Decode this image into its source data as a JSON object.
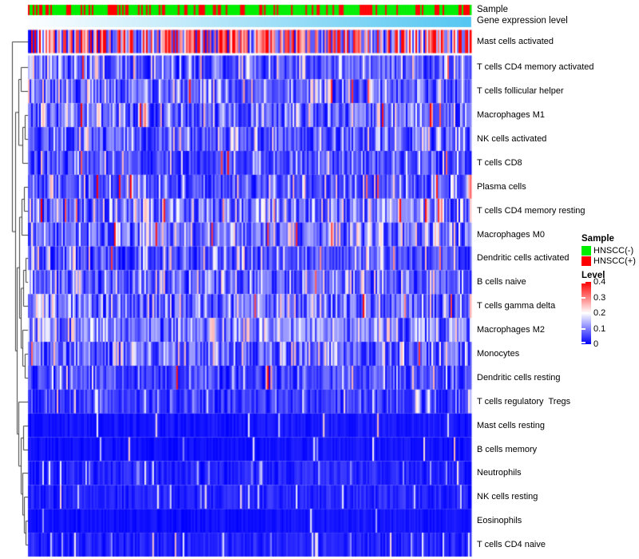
{
  "annotations": {
    "sample_label": "Sample",
    "expression_label": "Gene expression level",
    "sample_colors": {
      "negative": "#00EE00",
      "positive": "#FF0000"
    },
    "expression_gradient": {
      "from": "#FDFEFF",
      "to": "#55C7F2"
    }
  },
  "legend": {
    "sample_title": "Sample",
    "sample_items": [
      {
        "name": "hnscc-negative",
        "label": "HNSCC(-)",
        "color": "#00EE00"
      },
      {
        "name": "hnscc-positive",
        "label": "HNSCC(+)",
        "color": "#FF0000"
      }
    ],
    "level_title": "Level",
    "level_ticks": [
      "0.4",
      "0.3",
      "0.2",
      "0.1",
      "0"
    ],
    "colormap": {
      "low": "#0000FF",
      "mid": "#FFFFFF",
      "high": "#FF0000"
    }
  },
  "chart_data": {
    "type": "heatmap",
    "title": "",
    "x_axis": "samples ordered by gene expression level (no labels shown)",
    "value_range": [
      0,
      0.4
    ],
    "n_columns": 278,
    "sample_annotation": {
      "categories": [
        "HNSCC(-)",
        "HNSCC(+)"
      ],
      "colors": [
        "#00EE00",
        "#FF0000"
      ],
      "positive_fraction": 0.33
    },
    "expression_annotation": {
      "type": "continuous-gradient",
      "from": "#FDFEFF",
      "to": "#55C7F2",
      "direction": "low-left to high-right"
    },
    "rows": [
      {
        "label": "Mast cells activated",
        "p_high": 0.48,
        "p_mid": 0.22,
        "lo_max": 0.1
      },
      {
        "label": "T cells CD4 memory activated",
        "p_high": 0.01,
        "p_mid": 0.2,
        "lo_max": 0.12
      },
      {
        "label": "T cells follicular helper",
        "p_high": 0.01,
        "p_mid": 0.24,
        "lo_max": 0.12
      },
      {
        "label": "Macrophages M1",
        "p_high": 0.02,
        "p_mid": 0.24,
        "lo_max": 0.13
      },
      {
        "label": "NK cells activated",
        "p_high": 0.01,
        "p_mid": 0.2,
        "lo_max": 0.12
      },
      {
        "label": "T cells CD8",
        "p_high": 0.01,
        "p_mid": 0.13,
        "lo_max": 0.1
      },
      {
        "label": "Plasma cells",
        "p_high": 0.035,
        "p_mid": 0.14,
        "lo_max": 0.1
      },
      {
        "label": "T cells CD4 memory resting",
        "p_high": 0.05,
        "p_mid": 0.28,
        "lo_max": 0.13
      },
      {
        "label": "Macrophages M0",
        "p_high": 0.02,
        "p_mid": 0.26,
        "lo_max": 0.13
      },
      {
        "label": "Dendritic cells activated",
        "p_high": 0.015,
        "p_mid": 0.14,
        "lo_max": 0.1
      },
      {
        "label": "B cells naive",
        "p_high": 0.01,
        "p_mid": 0.22,
        "lo_max": 0.12
      },
      {
        "label": "T cells gamma delta",
        "p_high": 0.02,
        "p_mid": 0.26,
        "lo_max": 0.13
      },
      {
        "label": "Macrophages M2",
        "p_high": 0.01,
        "p_mid": 0.3,
        "lo_max": 0.15
      },
      {
        "label": "Monocytes",
        "p_high": 0.01,
        "p_mid": 0.24,
        "lo_max": 0.13
      },
      {
        "label": "Dendritic cells resting",
        "p_high": 0.005,
        "p_mid": 0.12,
        "lo_max": 0.1
      },
      {
        "label": "T cells regulatory  Tregs",
        "p_high": 0.005,
        "p_mid": 0.1,
        "lo_max": 0.09
      },
      {
        "label": "Mast cells resting",
        "p_high": 0,
        "p_mid": 0.025,
        "lo_max": 0.03
      },
      {
        "label": "B cells memory",
        "p_high": 0,
        "p_mid": 0.025,
        "lo_max": 0.025
      },
      {
        "label": "Neutrophils",
        "p_high": 0,
        "p_mid": 0.06,
        "lo_max": 0.05
      },
      {
        "label": "NK cells resting",
        "p_high": 0,
        "p_mid": 0.06,
        "lo_max": 0.05
      },
      {
        "label": "Eosinophils",
        "p_high": 0,
        "p_mid": 0.02,
        "lo_max": 0.025
      },
      {
        "label": "T cells CD4 naive",
        "p_high": 0,
        "p_mid": 0.06,
        "lo_max": 0.05
      }
    ],
    "row_gap_after": [
      1
    ],
    "dendrogram": {
      "x": 15,
      "c": [
        1,
        {
          "x": 19,
          "c": [
            {
              "x": 23,
              "c": [
                {
                  "x": 26,
                  "c": [
                    2,
                    3
                  ]
                },
                {
                  "x": 28,
                  "c": [
                    {
                      "x": 31,
                      "c": [
                        4,
                        5
                      ]
                    },
                    6
                  ]
                }
              ]
            },
            {
              "x": 21,
              "c": [
                {
                  "x": 24,
                  "c": [
                    {
                      "x": 27,
                      "c": [
                        {
                          "x": 30,
                          "c": [
                            7,
                            8
                          ]
                        },
                        9
                      ]
                    },
                    {
                      "x": 26,
                      "c": [
                        {
                          "x": 29,
                          "c": [
                            {
                              "x": 32,
                              "c": [
                                10,
                                11
                              ]
                            },
                            12
                          ]
                        },
                        {
                          "x": 28,
                          "c": [
                            13,
                            {
                              "x": 31,
                              "c": [
                                14,
                                15
                              ]
                            }
                          ]
                        }
                      ]
                    }
                  ]
                },
                {
                  "x": 23,
                  "c": [
                    16,
                    {
                      "x": 26,
                      "c": [
                        {
                          "x": 29,
                          "c": [
                            17,
                            18
                          ]
                        },
                        {
                          "x": 28,
                          "c": [
                            19,
                            {
                              "x": 30,
                              "c": [
                                20,
                                {
                                  "x": 32,
                                  "c": [
                                    21,
                                    22
                                  ]
                                }
                              ]
                            }
                          ]
                        }
                      ]
                    }
                  ]
                }
              ]
            }
          ]
        }
      ]
    }
  }
}
